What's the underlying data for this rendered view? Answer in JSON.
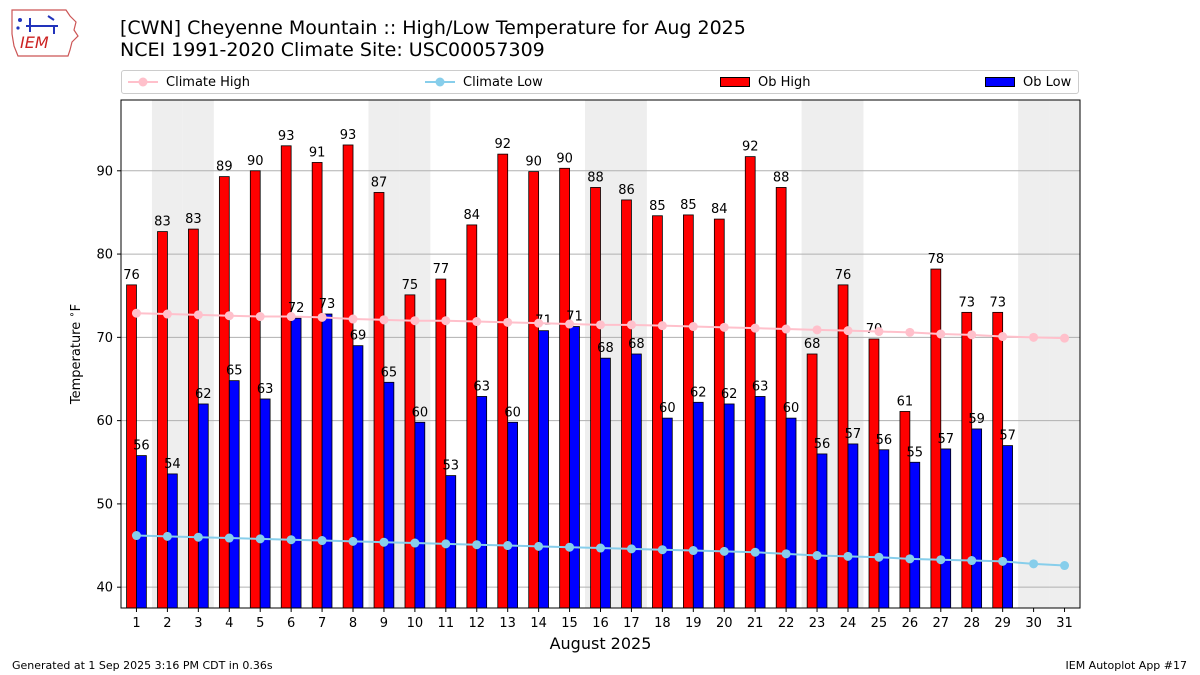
{
  "header": {
    "title_line1": "[CWN] Cheyenne Mountain :: High/Low Temperature for Aug 2025",
    "title_line2": "NCEI 1991-2020 Climate Site: USC00057309"
  },
  "logo": {
    "text": "IEM"
  },
  "footer": {
    "generated": "Generated at 1 Sep 2025 3:16 PM CDT in 0.36s",
    "app": "IEM Autoplot App #17"
  },
  "colors": {
    "ob_high": "#ff0000",
    "ob_low": "#0000ff",
    "climate_high": "#ffc0cb",
    "climate_low": "#87ceeb",
    "weekend_band": "#eeeeee",
    "grid": "#b0b0b0"
  },
  "chart_data": {
    "type": "bar",
    "xlabel": "August 2025",
    "ylabel": "Temperature $^\\circ$F",
    "ylim": [
      37.5,
      98.5
    ],
    "yticks": [
      40,
      50,
      60,
      70,
      80,
      90
    ],
    "grid": "horizontal",
    "legend": "top",
    "categories": [
      "1",
      "2",
      "3",
      "4",
      "5",
      "6",
      "7",
      "8",
      "9",
      "10",
      "11",
      "12",
      "13",
      "14",
      "15",
      "16",
      "17",
      "18",
      "19",
      "20",
      "21",
      "22",
      "23",
      "24",
      "25",
      "26",
      "27",
      "28",
      "29",
      "30",
      "31"
    ],
    "weekend_days": [
      2,
      3,
      9,
      10,
      16,
      17,
      23,
      24,
      30,
      31
    ],
    "bar_series": [
      {
        "name": "Ob High",
        "values": [
          76.3,
          82.7,
          83.0,
          89.3,
          90.0,
          93.0,
          91.0,
          93.1,
          87.4,
          75.1,
          77.0,
          83.5,
          92.0,
          89.9,
          90.3,
          88.0,
          86.5,
          84.6,
          84.7,
          84.2,
          91.7,
          88.0,
          68.0,
          76.3,
          69.8,
          61.1,
          78.2,
          73.0,
          73.0,
          null,
          null
        ],
        "labels": [
          "76",
          "83",
          "83",
          "89",
          "90",
          "93",
          "91",
          "93",
          "87",
          "75",
          "77",
          "84",
          "92",
          "90",
          "90",
          "88",
          "86",
          "85",
          "85",
          "84",
          "92",
          "88",
          "68",
          "76",
          "70",
          "61",
          "78",
          "73",
          "73",
          "",
          ""
        ]
      },
      {
        "name": "Ob Low",
        "values": [
          55.8,
          53.6,
          62.0,
          64.8,
          62.6,
          72.3,
          72.8,
          69.0,
          64.6,
          59.8,
          53.4,
          62.9,
          59.8,
          70.8,
          71.3,
          67.5,
          68.0,
          60.3,
          62.2,
          62.0,
          62.9,
          60.3,
          56.0,
          57.2,
          56.5,
          55.0,
          56.6,
          59.0,
          57.0,
          null,
          null
        ],
        "labels": [
          "56",
          "54",
          "62",
          "65",
          "63",
          "72",
          "73",
          "69",
          "65",
          "60",
          "53",
          "63",
          "60",
          "71",
          "71",
          "68",
          "68",
          "60",
          "62",
          "62",
          "63",
          "60",
          "56",
          "57",
          "56",
          "55",
          "57",
          "59",
          "57",
          "",
          ""
        ]
      }
    ],
    "line_series": [
      {
        "name": "Climate High",
        "values": [
          72.9,
          72.8,
          72.7,
          72.6,
          72.5,
          72.5,
          72.4,
          72.2,
          72.1,
          72.0,
          72.0,
          71.9,
          71.8,
          71.7,
          71.6,
          71.5,
          71.5,
          71.4,
          71.3,
          71.2,
          71.1,
          71.0,
          70.9,
          70.8,
          70.7,
          70.6,
          70.4,
          70.3,
          70.1,
          70.0,
          69.9
        ]
      },
      {
        "name": "Climate Low",
        "values": [
          46.2,
          46.1,
          46.0,
          45.9,
          45.8,
          45.7,
          45.6,
          45.5,
          45.4,
          45.3,
          45.2,
          45.1,
          45.0,
          44.9,
          44.8,
          44.7,
          44.6,
          44.5,
          44.4,
          44.3,
          44.2,
          44.0,
          43.8,
          43.7,
          43.6,
          43.4,
          43.3,
          43.2,
          43.1,
          42.8,
          42.6
        ]
      }
    ]
  }
}
